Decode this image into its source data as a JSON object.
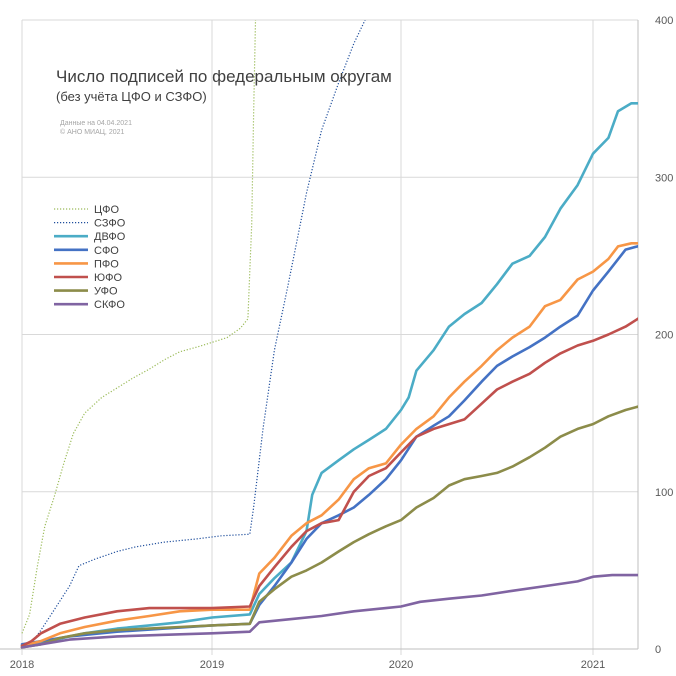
{
  "chart_data": {
    "type": "line",
    "title": "Число подписей по федеральным округам",
    "subtitle": "(без учёта ЦФО и СЗФО)",
    "notes": [
      "Данные на 04.04.2021",
      "© АНО МИАЦ, 2021"
    ],
    "x_axis": {
      "ticks": [
        "2018",
        "2019",
        "2020",
        "2021"
      ],
      "tick_values": [
        2018,
        2019,
        2020,
        2021
      ],
      "range": [
        2018.0,
        2021.26
      ]
    },
    "y_axis": {
      "ticks": [
        "0",
        "100",
        "200",
        "300",
        "400"
      ],
      "tick_values": [
        0,
        100,
        200,
        300,
        400
      ],
      "range": [
        0,
        400
      ],
      "position": "right"
    },
    "grid": {
      "vertical": true,
      "horizontal": true
    },
    "legend": {
      "placement": "left"
    },
    "series": [
      {
        "name": "ЦФО",
        "color": "#9bbb59",
        "dash": "dotted",
        "points": [
          [
            2018.0,
            10
          ],
          [
            2018.04,
            22
          ],
          [
            2018.08,
            52
          ],
          [
            2018.12,
            78
          ],
          [
            2018.17,
            97
          ],
          [
            2018.22,
            118
          ],
          [
            2018.27,
            137
          ],
          [
            2018.33,
            150
          ],
          [
            2018.42,
            160
          ],
          [
            2018.5,
            166
          ],
          [
            2018.58,
            172
          ],
          [
            2018.67,
            178
          ],
          [
            2018.75,
            184
          ],
          [
            2018.83,
            189
          ],
          [
            2018.92,
            192
          ],
          [
            2019.0,
            195
          ],
          [
            2019.08,
            198
          ],
          [
            2019.15,
            204
          ],
          [
            2019.19,
            210
          ],
          [
            2019.21,
            270
          ],
          [
            2019.22,
            340
          ],
          [
            2019.23,
            400
          ]
        ]
      },
      {
        "name": "СЗФО",
        "color": "#1f4e9c",
        "dash": "dotted",
        "points": [
          [
            2018.0,
            2
          ],
          [
            2018.05,
            4
          ],
          [
            2018.1,
            12
          ],
          [
            2018.17,
            25
          ],
          [
            2018.25,
            40
          ],
          [
            2018.3,
            53
          ],
          [
            2018.38,
            57
          ],
          [
            2018.5,
            62
          ],
          [
            2018.6,
            65
          ],
          [
            2018.75,
            68
          ],
          [
            2018.92,
            70
          ],
          [
            2019.05,
            72
          ],
          [
            2019.2,
            73
          ],
          [
            2019.22,
            90
          ],
          [
            2019.27,
            140
          ],
          [
            2019.33,
            190
          ],
          [
            2019.4,
            230
          ],
          [
            2019.45,
            260
          ],
          [
            2019.5,
            290
          ],
          [
            2019.58,
            330
          ],
          [
            2019.67,
            360
          ],
          [
            2019.75,
            385
          ],
          [
            2019.81,
            400
          ]
        ]
      },
      {
        "name": "ДВФО",
        "color": "#4bacc6",
        "dash": "solid",
        "points": [
          [
            2018.0,
            2
          ],
          [
            2018.08,
            3
          ],
          [
            2018.15,
            5
          ],
          [
            2018.25,
            8
          ],
          [
            2018.33,
            10
          ],
          [
            2018.5,
            13
          ],
          [
            2018.67,
            15
          ],
          [
            2018.83,
            17
          ],
          [
            2019.0,
            20
          ],
          [
            2019.2,
            22
          ],
          [
            2019.25,
            35
          ],
          [
            2019.33,
            45
          ],
          [
            2019.42,
            55
          ],
          [
            2019.5,
            75
          ],
          [
            2019.53,
            98
          ],
          [
            2019.58,
            112
          ],
          [
            2019.67,
            120
          ],
          [
            2019.75,
            127
          ],
          [
            2019.83,
            133
          ],
          [
            2019.92,
            140
          ],
          [
            2020.0,
            152
          ],
          [
            2020.04,
            160
          ],
          [
            2020.08,
            177
          ],
          [
            2020.17,
            190
          ],
          [
            2020.25,
            205
          ],
          [
            2020.33,
            213
          ],
          [
            2020.42,
            220
          ],
          [
            2020.5,
            232
          ],
          [
            2020.58,
            245
          ],
          [
            2020.67,
            250
          ],
          [
            2020.75,
            262
          ],
          [
            2020.83,
            280
          ],
          [
            2020.92,
            295
          ],
          [
            2021.0,
            315
          ],
          [
            2021.08,
            325
          ],
          [
            2021.13,
            342
          ],
          [
            2021.2,
            347
          ],
          [
            2021.26,
            347
          ]
        ]
      },
      {
        "name": "СФО",
        "color": "#4472c4",
        "dash": "solid",
        "points": [
          [
            2018.0,
            3
          ],
          [
            2018.1,
            5
          ],
          [
            2018.25,
            8
          ],
          [
            2018.5,
            11
          ],
          [
            2018.75,
            13
          ],
          [
            2019.0,
            15
          ],
          [
            2019.2,
            16
          ],
          [
            2019.25,
            28
          ],
          [
            2019.33,
            40
          ],
          [
            2019.42,
            55
          ],
          [
            2019.5,
            70
          ],
          [
            2019.58,
            80
          ],
          [
            2019.67,
            85
          ],
          [
            2019.75,
            90
          ],
          [
            2019.83,
            98
          ],
          [
            2019.92,
            108
          ],
          [
            2020.0,
            120
          ],
          [
            2020.08,
            135
          ],
          [
            2020.17,
            142
          ],
          [
            2020.25,
            148
          ],
          [
            2020.33,
            158
          ],
          [
            2020.42,
            170
          ],
          [
            2020.5,
            180
          ],
          [
            2020.58,
            186
          ],
          [
            2020.67,
            192
          ],
          [
            2020.75,
            198
          ],
          [
            2020.83,
            205
          ],
          [
            2020.92,
            212
          ],
          [
            2021.0,
            228
          ],
          [
            2021.08,
            240
          ],
          [
            2021.17,
            254
          ],
          [
            2021.26,
            257
          ]
        ]
      },
      {
        "name": "ПФО",
        "color": "#f79646",
        "dash": "solid",
        "points": [
          [
            2018.0,
            2
          ],
          [
            2018.1,
            5
          ],
          [
            2018.2,
            10
          ],
          [
            2018.33,
            14
          ],
          [
            2018.5,
            18
          ],
          [
            2018.67,
            21
          ],
          [
            2018.83,
            24
          ],
          [
            2019.0,
            25
          ],
          [
            2019.2,
            25
          ],
          [
            2019.25,
            48
          ],
          [
            2019.33,
            58
          ],
          [
            2019.42,
            72
          ],
          [
            2019.5,
            80
          ],
          [
            2019.58,
            85
          ],
          [
            2019.67,
            95
          ],
          [
            2019.75,
            108
          ],
          [
            2019.83,
            115
          ],
          [
            2019.92,
            118
          ],
          [
            2020.0,
            130
          ],
          [
            2020.08,
            140
          ],
          [
            2020.17,
            148
          ],
          [
            2020.25,
            160
          ],
          [
            2020.33,
            170
          ],
          [
            2020.42,
            180
          ],
          [
            2020.5,
            190
          ],
          [
            2020.58,
            198
          ],
          [
            2020.67,
            205
          ],
          [
            2020.75,
            218
          ],
          [
            2020.83,
            222
          ],
          [
            2020.92,
            235
          ],
          [
            2021.0,
            240
          ],
          [
            2021.08,
            248
          ],
          [
            2021.13,
            256
          ],
          [
            2021.2,
            258
          ],
          [
            2021.26,
            258
          ]
        ]
      },
      {
        "name": "ЮФО",
        "color": "#c0504d",
        "dash": "solid",
        "points": [
          [
            2018.0,
            2
          ],
          [
            2018.05,
            5
          ],
          [
            2018.1,
            10
          ],
          [
            2018.2,
            16
          ],
          [
            2018.33,
            20
          ],
          [
            2018.5,
            24
          ],
          [
            2018.67,
            26
          ],
          [
            2018.83,
            26
          ],
          [
            2019.0,
            26
          ],
          [
            2019.2,
            27
          ],
          [
            2019.25,
            40
          ],
          [
            2019.33,
            52
          ],
          [
            2019.42,
            65
          ],
          [
            2019.5,
            75
          ],
          [
            2019.58,
            80
          ],
          [
            2019.67,
            82
          ],
          [
            2019.75,
            100
          ],
          [
            2019.83,
            110
          ],
          [
            2019.92,
            115
          ],
          [
            2020.0,
            125
          ],
          [
            2020.08,
            135
          ],
          [
            2020.17,
            140
          ],
          [
            2020.25,
            143
          ],
          [
            2020.33,
            146
          ],
          [
            2020.42,
            156
          ],
          [
            2020.5,
            165
          ],
          [
            2020.58,
            170
          ],
          [
            2020.67,
            175
          ],
          [
            2020.75,
            182
          ],
          [
            2020.83,
            188
          ],
          [
            2020.92,
            193
          ],
          [
            2021.0,
            196
          ],
          [
            2021.08,
            200
          ],
          [
            2021.17,
            205
          ],
          [
            2021.26,
            212
          ]
        ]
      },
      {
        "name": "УФО",
        "color": "#8c8c4a",
        "dash": "solid",
        "points": [
          [
            2018.0,
            1
          ],
          [
            2018.1,
            3
          ],
          [
            2018.2,
            7
          ],
          [
            2018.33,
            10
          ],
          [
            2018.5,
            12
          ],
          [
            2018.67,
            13
          ],
          [
            2018.83,
            14
          ],
          [
            2019.0,
            15
          ],
          [
            2019.2,
            16
          ],
          [
            2019.25,
            30
          ],
          [
            2019.33,
            38
          ],
          [
            2019.42,
            46
          ],
          [
            2019.5,
            50
          ],
          [
            2019.58,
            55
          ],
          [
            2019.67,
            62
          ],
          [
            2019.75,
            68
          ],
          [
            2019.83,
            73
          ],
          [
            2019.92,
            78
          ],
          [
            2020.0,
            82
          ],
          [
            2020.08,
            90
          ],
          [
            2020.17,
            96
          ],
          [
            2020.25,
            104
          ],
          [
            2020.33,
            108
          ],
          [
            2020.42,
            110
          ],
          [
            2020.5,
            112
          ],
          [
            2020.58,
            116
          ],
          [
            2020.67,
            122
          ],
          [
            2020.75,
            128
          ],
          [
            2020.83,
            135
          ],
          [
            2020.92,
            140
          ],
          [
            2021.0,
            143
          ],
          [
            2021.08,
            148
          ],
          [
            2021.17,
            152
          ],
          [
            2021.26,
            155
          ]
        ]
      },
      {
        "name": "СКФО",
        "color": "#8064a2",
        "dash": "solid",
        "points": [
          [
            2018.0,
            1
          ],
          [
            2018.1,
            3
          ],
          [
            2018.25,
            6
          ],
          [
            2018.5,
            8
          ],
          [
            2018.75,
            9
          ],
          [
            2019.0,
            10
          ],
          [
            2019.2,
            11
          ],
          [
            2019.25,
            17
          ],
          [
            2019.42,
            19
          ],
          [
            2019.58,
            21
          ],
          [
            2019.75,
            24
          ],
          [
            2019.92,
            26
          ],
          [
            2020.0,
            27
          ],
          [
            2020.1,
            30
          ],
          [
            2020.25,
            32
          ],
          [
            2020.42,
            34
          ],
          [
            2020.58,
            37
          ],
          [
            2020.75,
            40
          ],
          [
            2020.92,
            43
          ],
          [
            2021.0,
            46
          ],
          [
            2021.1,
            47
          ],
          [
            2021.26,
            47
          ]
        ]
      }
    ]
  }
}
